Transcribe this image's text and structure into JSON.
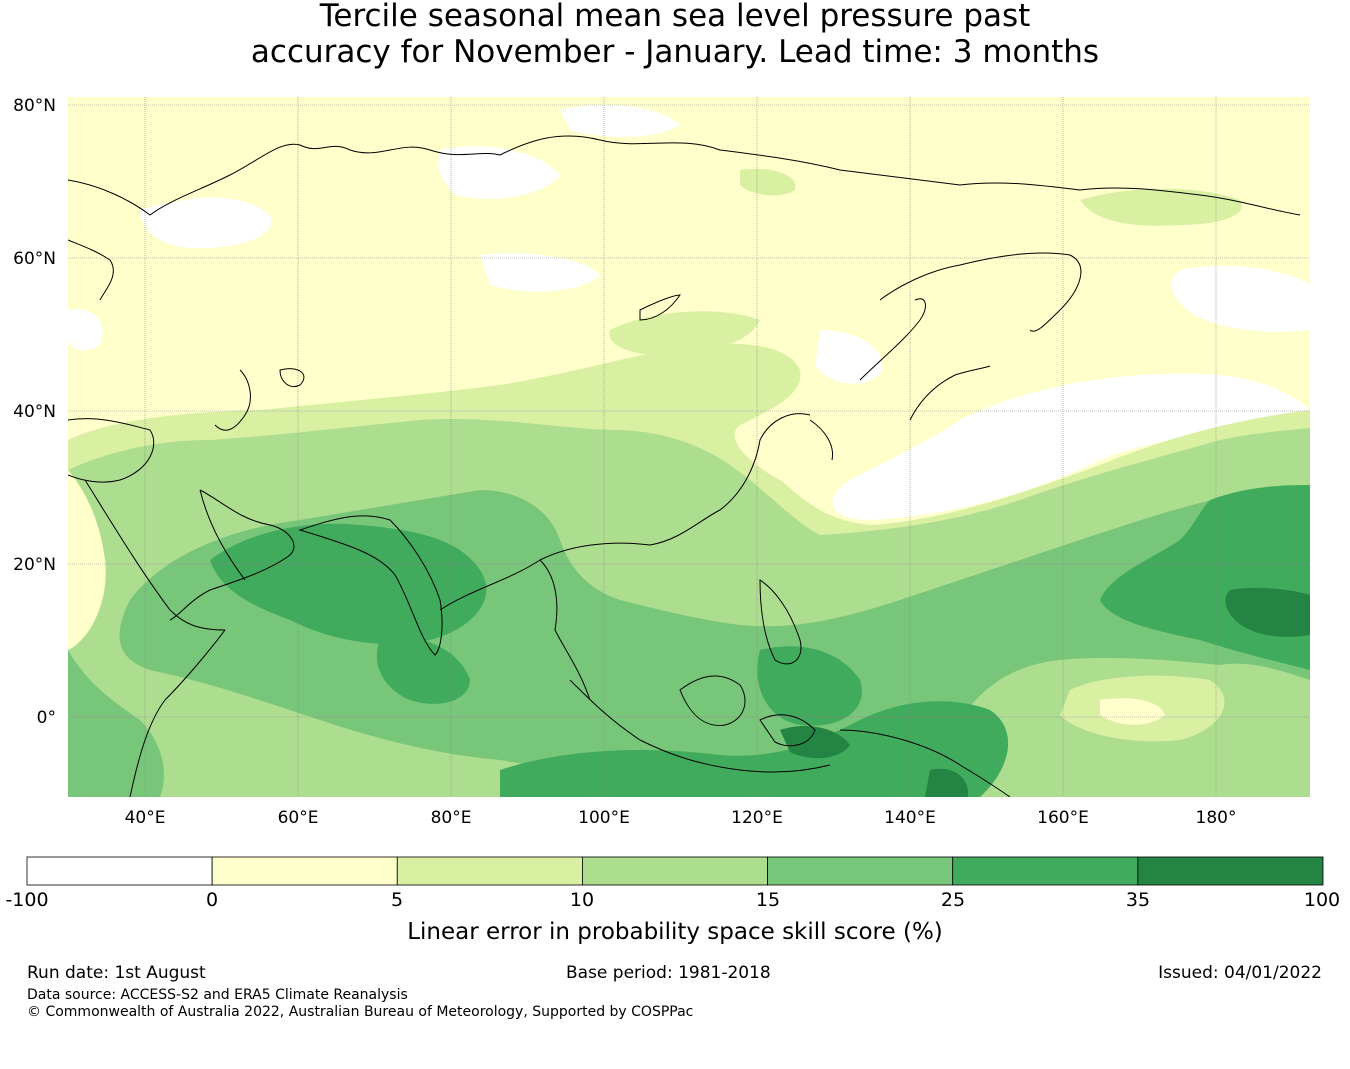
{
  "title": {
    "line1": "Tercile seasonal mean sea level pressure past",
    "line2": "accuracy for November - January. Lead time: 3 months"
  },
  "map": {
    "lat_labels": [
      "80°N",
      "60°N",
      "40°N",
      "20°N",
      "0°"
    ],
    "lon_labels": [
      "40°E",
      "60°E",
      "80°E",
      "100°E",
      "120°E",
      "140°E",
      "160°E",
      "180°"
    ]
  },
  "colorbar": {
    "label": "Linear error in probability space skill score (%)",
    "ticks": [
      "-100",
      "0",
      "5",
      "10",
      "15",
      "25",
      "35",
      "100"
    ],
    "colors": [
      "#ffffff",
      "#ffffcc",
      "#d9f0a3",
      "#addd8e",
      "#78c679",
      "#41ab5d",
      "#238443"
    ]
  },
  "footer": {
    "run_date": "Run date: 1st August",
    "base_period": "Base period: 1981-2018",
    "issued": "Issued: 04/01/2022",
    "data_source": "Data source: ACCESS-S2 and ERA5 Climate Reanalysis",
    "copyright": "© Commonwealth of Australia 2022, Australian Bureau of Meteorology, Supported by COSPPac"
  }
}
